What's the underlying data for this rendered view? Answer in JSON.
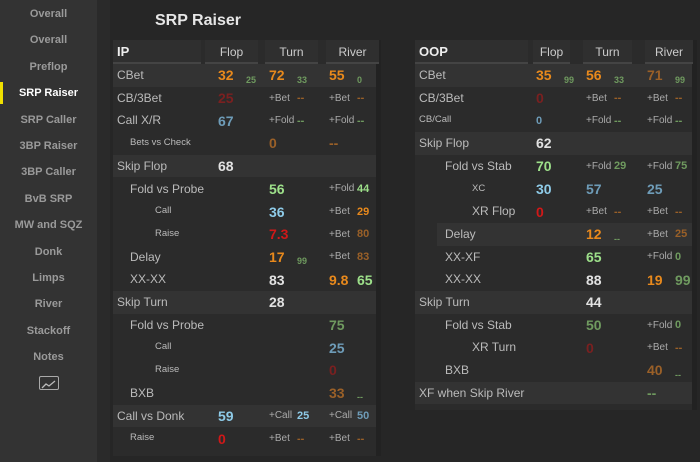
{
  "sidebar": {
    "items": [
      "Overall",
      "Overall",
      "Preflop",
      "SRP Raiser",
      "SRP Caller",
      "3BP Raiser",
      "3BP Caller",
      "BvB SRP",
      "MW and SQZ",
      "Donk",
      "Limps",
      "River",
      "Stackoff",
      "Notes"
    ],
    "active": 3,
    "chart_icon": "line-chart-icon"
  },
  "title": "SRP Raiser",
  "colors": {
    "orange": "#e8891c",
    "brown": "#9a6028",
    "darkred": "#7a2020",
    "red": "#d01818",
    "blue": "#8ecbe8",
    "mblue": "#6e9cb8",
    "lgreen": "#9de08a",
    "mgreen": "#6f9a5f",
    "white": "#e2e2e2",
    "accent": "#f0e000"
  },
  "panels": [
    {
      "key": "ip",
      "title": "IP",
      "cols": [
        "Flop",
        "Turn",
        "River"
      ],
      "rows": [
        {
          "label": "CBet",
          "lv": 0,
          "st": 1,
          "flop": {
            "v": "32",
            "c": "orange",
            "s": "25",
            "sc": "mgreen"
          },
          "turn": {
            "v": "72",
            "c": "orange",
            "s": "33",
            "sc": "mgreen"
          },
          "river": {
            "v": "55",
            "c": "orange",
            "s": "0",
            "sc": "mgreen"
          }
        },
        {
          "label": "CB/3Bet",
          "lv": 0,
          "flop": {
            "v": "25",
            "c": "darkred"
          },
          "turn": {
            "p": "+Bet",
            "v": "--",
            "c": "brown"
          },
          "river": {
            "p": "+Bet",
            "v": "--",
            "c": "brown"
          }
        },
        {
          "label": "Call X/R",
          "lv": 0,
          "flop": {
            "v": "67",
            "c": "mblue"
          },
          "turn": {
            "p": "+Fold",
            "v": "--",
            "c": "mgreen"
          },
          "river": {
            "p": "+Fold",
            "v": "--",
            "c": "mgreen"
          }
        },
        {
          "label": "Bets vs Check",
          "lv": 1,
          "sm": 1,
          "turn": {
            "v": "0",
            "c": "brown"
          },
          "river": {
            "v": "--",
            "c": "brown"
          }
        },
        {
          "label": "Skip Flop",
          "lv": 0,
          "st": 1,
          "flop": {
            "v": "68",
            "c": "white"
          }
        },
        {
          "label": "Fold vs Probe",
          "lv": 1,
          "turn": {
            "v": "56",
            "c": "lgreen"
          },
          "river": {
            "p": "+Fold",
            "v": "44",
            "c": "lgreen"
          }
        },
        {
          "label": "Call",
          "lv": 2,
          "sm": 1,
          "turn": {
            "v": "36",
            "c": "blue"
          },
          "river": {
            "p": "+Bet",
            "v": "29",
            "c": "orange"
          }
        },
        {
          "label": "Raise",
          "lv": 2,
          "sm": 1,
          "turn": {
            "v": "7.3",
            "c": "red"
          },
          "river": {
            "p": "+Bet",
            "v": "80",
            "c": "brown"
          }
        },
        {
          "label": "Delay",
          "lv": 1,
          "turn": {
            "v": "17",
            "c": "orange",
            "s": "99",
            "sc": "mgreen"
          },
          "river": {
            "p": "+Bet",
            "v": "83",
            "c": "brown"
          }
        },
        {
          "label": "XX-XX",
          "lv": 1,
          "turn": {
            "v": "83",
            "c": "white"
          },
          "river": {
            "v": "9.8",
            "c": "orange",
            "s": "65",
            "sc": "lgreen",
            "sb": 1
          }
        },
        {
          "label": "Skip Turn",
          "lv": 0,
          "st": 1,
          "turn": {
            "v": "28",
            "c": "white"
          }
        },
        {
          "label": "Fold vs Probe",
          "lv": 1,
          "river": {
            "v": "75",
            "c": "mgreen"
          }
        },
        {
          "label": "Call",
          "lv": 2,
          "sm": 1,
          "river": {
            "v": "25",
            "c": "mblue"
          }
        },
        {
          "label": "Raise",
          "lv": 2,
          "sm": 1,
          "river": {
            "v": "0",
            "c": "darkred"
          }
        },
        {
          "label": "BXB",
          "lv": 1,
          "river": {
            "v": "33",
            "c": "brown",
            "s": "--",
            "sc": "mgreen"
          }
        },
        {
          "label": "Call vs Donk",
          "lv": 0,
          "st": 1,
          "flop": {
            "v": "59",
            "c": "blue"
          },
          "turn": {
            "p": "+Call",
            "v": "25",
            "c": "blue"
          },
          "river": {
            "p": "+Call",
            "v": "50",
            "c": "mblue"
          }
        },
        {
          "label": "Raise",
          "lv": 1,
          "sm": 1,
          "flop": {
            "v": "0",
            "c": "red"
          },
          "turn": {
            "p": "+Bet",
            "v": "--",
            "c": "brown"
          },
          "river": {
            "p": "+Bet",
            "v": "--",
            "c": "brown"
          }
        }
      ]
    },
    {
      "key": "oop",
      "title": "OOP",
      "cols": [
        "Flop",
        "Turn",
        "River"
      ],
      "rows": [
        {
          "label": "CBet",
          "lv": 0,
          "st": 1,
          "flop": {
            "v": "35",
            "c": "orange",
            "s": "99",
            "sc": "mgreen"
          },
          "turn": {
            "v": "56",
            "c": "orange",
            "s": "33",
            "sc": "mgreen"
          },
          "river": {
            "v": "71",
            "c": "brown",
            "s": "99",
            "sc": "mgreen"
          }
        },
        {
          "label": "CB/3Bet",
          "lv": 0,
          "flop": {
            "v": "0",
            "c": "darkred"
          },
          "turn": {
            "p": "+Bet",
            "v": "--",
            "c": "brown"
          },
          "river": {
            "p": "+Bet",
            "v": "--",
            "c": "brown"
          }
        },
        {
          "label": "CB/Call",
          "lv": 0,
          "sm": 1,
          "flop": {
            "v": "0",
            "c": "mblue",
            "m": 1
          },
          "turn": {
            "p": "+Fold",
            "v": "--",
            "c": "mgreen"
          },
          "river": {
            "p": "+Fold",
            "v": "--",
            "c": "mgreen"
          }
        },
        {
          "label": "Skip Flop",
          "lv": 0,
          "st": 1,
          "flop": {
            "v": "62",
            "c": "white"
          }
        },
        {
          "label": "Fold vs Stab",
          "lv": 1,
          "flop": {
            "v": "70",
            "c": "lgreen"
          },
          "turn": {
            "p": "+Fold",
            "v": "29",
            "c": "mgreen"
          },
          "river": {
            "p": "+Fold",
            "v": "75",
            "c": "mgreen"
          }
        },
        {
          "label": "XC",
          "lv": 2,
          "sm": 1,
          "flop": {
            "v": "30",
            "c": "blue"
          },
          "turn": {
            "v": "57",
            "c": "mblue"
          },
          "river": {
            "v": "25",
            "c": "mblue"
          }
        },
        {
          "label": "XR Flop",
          "lv": 2,
          "flop": {
            "v": "0",
            "c": "red"
          },
          "turn": {
            "p": "+Bet",
            "v": "--",
            "c": "brown"
          },
          "river": {
            "p": "+Bet",
            "v": "--",
            "c": "brown"
          }
        },
        {
          "label": "Delay",
          "lv": 1,
          "st": 1,
          "turn": {
            "v": "12",
            "c": "orange",
            "s": "--",
            "sc": "mgreen"
          },
          "river": {
            "p": "+Bet",
            "v": "25",
            "c": "brown"
          }
        },
        {
          "label": "XX-XF",
          "lv": 1,
          "turn": {
            "v": "65",
            "c": "lgreen"
          },
          "river": {
            "p": "+Fold",
            "v": "0",
            "c": "mgreen"
          }
        },
        {
          "label": "XX-XX",
          "lv": 1,
          "turn": {
            "v": "88",
            "c": "white"
          },
          "river": {
            "v": "19",
            "c": "orange",
            "s": "99",
            "sc": "mgreen",
            "sb": 1
          }
        },
        {
          "label": "Skip Turn",
          "lv": 0,
          "st": 1,
          "turn": {
            "v": "44",
            "c": "white"
          }
        },
        {
          "label": "Fold vs Stab",
          "lv": 1,
          "turn": {
            "v": "50",
            "c": "mgreen"
          },
          "river": {
            "p": "+Fold",
            "v": "0",
            "c": "mgreen"
          }
        },
        {
          "label": "XR Turn",
          "lv": 2,
          "turn": {
            "v": "0",
            "c": "darkred"
          },
          "river": {
            "p": "+Bet",
            "v": "--",
            "c": "brown"
          }
        },
        {
          "label": "BXB",
          "lv": 1,
          "river": {
            "v": "40",
            "c": "brown",
            "s": "--",
            "sc": "mgreen"
          }
        },
        {
          "label": "XF when Skip River",
          "lv": 0,
          "st": 1,
          "river": {
            "v": "--",
            "c": "mgreen"
          }
        }
      ]
    }
  ]
}
